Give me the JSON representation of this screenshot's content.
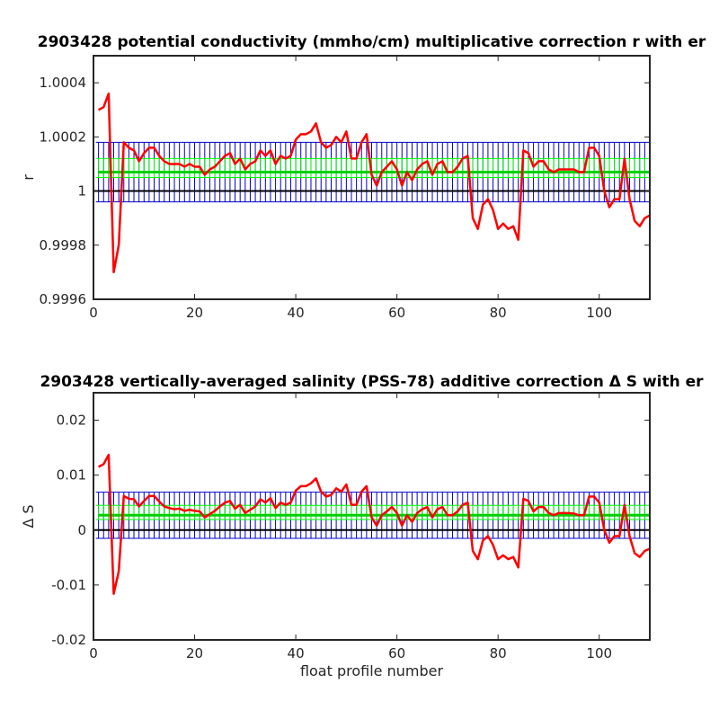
{
  "chart_data": [
    {
      "type": "line",
      "title": "2903428 potential conductivity (mmho/cm) multiplicative correction r with er",
      "xlabel": "",
      "ylabel": "r",
      "xlim": [
        0,
        110
      ],
      "ylim": [
        0.9996,
        1.0005
      ],
      "xticks": [
        0,
        20,
        40,
        60,
        80,
        100
      ],
      "xtick_labels": [
        "0",
        "20",
        "40",
        "60",
        "80",
        "100"
      ],
      "yticks": [
        0.9996,
        0.9998,
        1.0,
        1.0002,
        1.0004
      ],
      "ytick_labels": [
        "0.9996",
        "0.9998",
        "1",
        "1.0002",
        "1.0004"
      ],
      "grid": false,
      "reference_line": 1.0,
      "series": [
        {
          "role": "correction",
          "color": "#ff0000",
          "x": [
            1,
            2,
            3,
            4,
            5,
            6,
            7,
            8,
            9,
            10,
            11,
            12,
            13,
            14,
            15,
            16,
            17,
            18,
            19,
            20,
            21,
            22,
            23,
            24,
            25,
            26,
            27,
            28,
            29,
            30,
            31,
            32,
            33,
            34,
            35,
            36,
            37,
            38,
            39,
            40,
            41,
            42,
            43,
            44,
            45,
            46,
            47,
            48,
            49,
            50,
            51,
            52,
            53,
            54,
            55,
            56,
            57,
            58,
            59,
            60,
            61,
            62,
            63,
            64,
            65,
            66,
            67,
            68,
            69,
            70,
            71,
            72,
            73,
            74,
            75,
            76,
            77,
            78,
            79,
            80,
            81,
            82,
            83,
            84,
            85,
            86,
            87,
            88,
            89,
            90,
            91,
            92,
            93,
            94,
            95,
            96,
            97,
            98,
            99,
            100,
            101,
            102,
            103,
            104,
            105,
            106,
            107,
            108,
            109,
            110
          ],
          "y": [
            1.0003,
            1.00031,
            1.00036,
            0.9997,
            0.9998,
            1.00018,
            1.00016,
            1.00015,
            1.00011,
            1.00014,
            1.00016,
            1.00016,
            1.00013,
            1.00011,
            1.0001,
            1.0001,
            1.0001,
            1.00009,
            1.0001,
            1.00009,
            1.00009,
            1.00006,
            1.00008,
            1.00009,
            1.00011,
            1.00013,
            1.00014,
            1.0001,
            1.00012,
            1.00008,
            1.0001,
            1.00011,
            1.00015,
            1.00013,
            1.00015,
            1.0001,
            1.00013,
            1.00012,
            1.00013,
            1.00019,
            1.00021,
            1.00021,
            1.00022,
            1.00025,
            1.00018,
            1.00016,
            1.00017,
            1.0002,
            1.00018,
            1.00022,
            1.00012,
            1.00012,
            1.00018,
            1.00021,
            1.00006,
            1.00002,
            1.00007,
            1.00009,
            1.00011,
            1.00008,
            1.00002,
            1.00007,
            1.00004,
            1.00008,
            1.0001,
            1.00011,
            1.00006,
            1.0001,
            1.00011,
            1.00007,
            1.00007,
            1.00009,
            1.00012,
            1.00013,
            0.9999,
            0.99986,
            0.99995,
            0.99997,
            0.99993,
            0.99986,
            0.99988,
            0.99986,
            0.99987,
            0.99982,
            1.00015,
            1.00014,
            1.00009,
            1.00011,
            1.00011,
            1.00008,
            1.00007,
            1.00008,
            1.00008,
            1.00008,
            1.00008,
            1.00007,
            1.00007,
            1.00016,
            1.00016,
            1.00013,
            1.0,
            0.99994,
            0.99997,
            0.99997,
            1.00012,
            0.99997,
            0.99989,
            0.99987,
            0.9999,
            0.99991
          ]
        },
        {
          "role": "mean-correction",
          "color": "#00d000",
          "constant": 1.00007
        }
      ],
      "error_bands": [
        {
          "role": "correction-error",
          "color": "#0000c8",
          "lower": 0.99996,
          "upper": 1.00018
        },
        {
          "role": "mean-correction-error",
          "color": "#00ff00",
          "lower": 1.00005,
          "upper": 1.00012
        }
      ]
    },
    {
      "type": "line",
      "title": "2903428 vertically-averaged salinity (PSS-78) additive correction Δ S with er",
      "xlabel": "float profile number",
      "ylabel": "Δ S",
      "xlim": [
        0,
        110
      ],
      "ylim": [
        -0.02,
        0.025
      ],
      "xticks": [
        0,
        20,
        40,
        60,
        80,
        100
      ],
      "xtick_labels": [
        "0",
        "20",
        "40",
        "60",
        "80",
        "100"
      ],
      "yticks": [
        -0.02,
        -0.01,
        0,
        0.01,
        0.02
      ],
      "ytick_labels": [
        "-0.02",
        "-0.01",
        "0",
        "0.01",
        "0.02"
      ],
      "grid": false,
      "reference_line": 0,
      "series": [
        {
          "role": "correction",
          "color": "#ff0000",
          "x": [
            1,
            2,
            3,
            4,
            5,
            6,
            7,
            8,
            9,
            10,
            11,
            12,
            13,
            14,
            15,
            16,
            17,
            18,
            19,
            20,
            21,
            22,
            23,
            24,
            25,
            26,
            27,
            28,
            29,
            30,
            31,
            32,
            33,
            34,
            35,
            36,
            37,
            38,
            39,
            40,
            41,
            42,
            43,
            44,
            45,
            46,
            47,
            48,
            49,
            50,
            51,
            52,
            53,
            54,
            55,
            56,
            57,
            58,
            59,
            60,
            61,
            62,
            63,
            64,
            65,
            66,
            67,
            68,
            69,
            70,
            71,
            72,
            73,
            74,
            75,
            76,
            77,
            78,
            79,
            80,
            81,
            82,
            83,
            84,
            85,
            86,
            87,
            88,
            89,
            90,
            91,
            92,
            93,
            94,
            95,
            96,
            97,
            98,
            99,
            100,
            101,
            102,
            103,
            104,
            105,
            106,
            107,
            108,
            109,
            110
          ],
          "y": [
            0.0115,
            0.012,
            0.0137,
            -0.0116,
            -0.0075,
            0.0062,
            0.0057,
            0.0056,
            0.0043,
            0.0053,
            0.0062,
            0.0062,
            0.0052,
            0.0043,
            0.004,
            0.0038,
            0.0039,
            0.0035,
            0.0037,
            0.0035,
            0.0034,
            0.0023,
            0.0029,
            0.0035,
            0.0043,
            0.005,
            0.0053,
            0.0039,
            0.0046,
            0.0031,
            0.0037,
            0.0043,
            0.0056,
            0.005,
            0.0058,
            0.004,
            0.005,
            0.0046,
            0.005,
            0.0072,
            0.008,
            0.008,
            0.0085,
            0.0094,
            0.007,
            0.0061,
            0.0064,
            0.0076,
            0.007,
            0.0083,
            0.0046,
            0.0046,
            0.007,
            0.008,
            0.0023,
            0.0008,
            0.0027,
            0.0034,
            0.0042,
            0.0031,
            0.0008,
            0.0027,
            0.0015,
            0.0031,
            0.0038,
            0.0042,
            0.0023,
            0.0038,
            0.0042,
            0.0027,
            0.0027,
            0.0034,
            0.0046,
            0.005,
            -0.0038,
            -0.0053,
            -0.0019,
            -0.0011,
            -0.0027,
            -0.0053,
            -0.0046,
            -0.0053,
            -0.0049,
            -0.0068,
            0.0057,
            0.0053,
            0.0034,
            0.0042,
            0.0042,
            0.0031,
            0.0027,
            0.0031,
            0.0031,
            0.0031,
            0.003,
            0.0027,
            0.0027,
            0.0061,
            0.0061,
            0.005,
            0.0,
            -0.0023,
            -0.0011,
            -0.0011,
            0.0046,
            -0.0011,
            -0.0042,
            -0.0049,
            -0.0038,
            -0.0034
          ]
        },
        {
          "role": "mean-correction",
          "color": "#00d000",
          "constant": 0.0027
        }
      ],
      "error_bands": [
        {
          "role": "correction-error",
          "color": "#0000c8",
          "lower": -0.0015,
          "upper": 0.0069
        },
        {
          "role": "mean-correction-error",
          "color": "#00ff00",
          "lower": 0.0019,
          "upper": 0.0045
        }
      ]
    }
  ]
}
